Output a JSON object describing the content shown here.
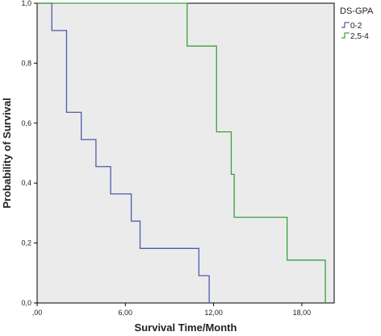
{
  "chart_data": {
    "type": "line",
    "step": true,
    "xlabel": "Survival Time/Month",
    "ylabel": "Probability of Survival",
    "xlim": [
      0,
      20.2
    ],
    "ylim": [
      0,
      1.0
    ],
    "x_ticks": [
      {
        "value": 0,
        "label": ",00"
      },
      {
        "value": 6,
        "label": "6,00"
      },
      {
        "value": 12,
        "label": "12,00"
      },
      {
        "value": 18,
        "label": "18,00"
      }
    ],
    "y_ticks": [
      {
        "value": 0,
        "label": "0,0"
      },
      {
        "value": 0.2,
        "label": "0,2"
      },
      {
        "value": 0.4,
        "label": "0,4"
      },
      {
        "value": 0.6,
        "label": "0,6"
      },
      {
        "value": 0.8,
        "label": "0,8"
      },
      {
        "value": 1.0,
        "label": "1,0"
      }
    ],
    "legend_title": "DS-GPA",
    "legend_position": "right",
    "plot_background": "#ebebeb",
    "series": [
      {
        "name": "0-2",
        "color": "#4f5bad",
        "points": [
          {
            "x": 0,
            "y": 1.0
          },
          {
            "x": 1.0,
            "y": 0.909
          },
          {
            "x": 2.0,
            "y": 0.636
          },
          {
            "x": 3.0,
            "y": 0.545
          },
          {
            "x": 4.0,
            "y": 0.455
          },
          {
            "x": 5.0,
            "y": 0.364
          },
          {
            "x": 6.4,
            "y": 0.273
          },
          {
            "x": 7.0,
            "y": 0.182
          },
          {
            "x": 11.0,
            "y": 0.091
          },
          {
            "x": 11.7,
            "y": 0.0
          }
        ]
      },
      {
        "name": "2,5-4",
        "color": "#3aa040",
        "points": [
          {
            "x": 0,
            "y": 1.0
          },
          {
            "x": 10.2,
            "y": 0.857
          },
          {
            "x": 12.2,
            "y": 0.571
          },
          {
            "x": 13.2,
            "y": 0.429
          },
          {
            "x": 13.4,
            "y": 0.286
          },
          {
            "x": 17.0,
            "y": 0.143
          },
          {
            "x": 19.6,
            "y": 0.0
          }
        ]
      }
    ]
  }
}
